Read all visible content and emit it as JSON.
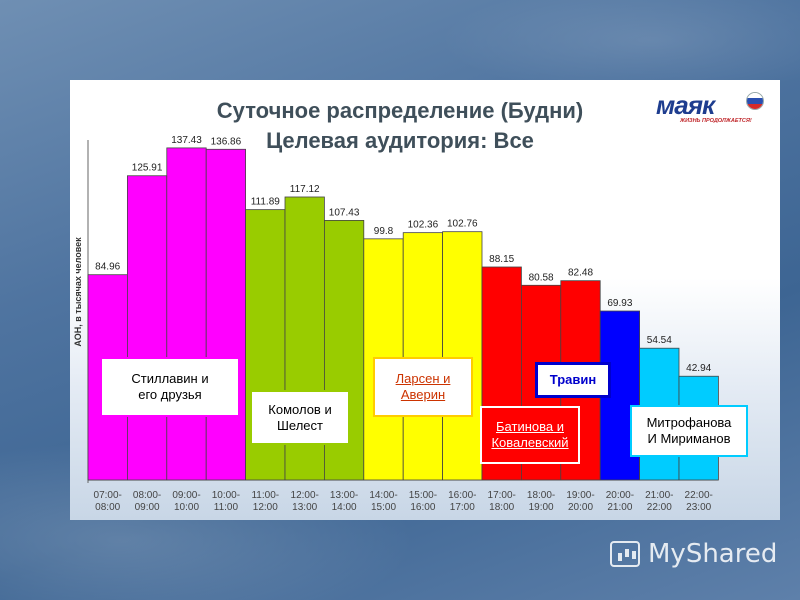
{
  "title": "Суточное распределение (Будни)",
  "subtitle": "Целевая аудитория: Все",
  "logo": {
    "word": "маяк",
    "tagline": "ЖИЗНЬ ПРОДОЛЖАЕТСЯ!",
    "flag_colors": [
      "#ffffff",
      "#2a4fb0",
      "#d42a2a"
    ]
  },
  "watermark": "MyShared",
  "chart_data": {
    "type": "bar",
    "ylabel": "АОН, в тысячах человек",
    "categories": [
      "07:00-08:00",
      "08:00-09:00",
      "09:00-10:00",
      "10:00-11:00",
      "11:00-12:00",
      "12:00-13:00",
      "13:00-14:00",
      "14:00-15:00",
      "15:00-16:00",
      "16:00-17:00",
      "17:00-18:00",
      "18:00-19:00",
      "19:00-20:00",
      "20:00-21:00",
      "21:00-22:00",
      "22:00-23:00"
    ],
    "category_lines": [
      [
        "07:00-",
        "08:00"
      ],
      [
        "08:00-",
        "09:00"
      ],
      [
        "09:00-",
        "10:00"
      ],
      [
        "10:00-",
        "11:00"
      ],
      [
        "11:00-",
        "12:00"
      ],
      [
        "12:00-",
        "13:00"
      ],
      [
        "13:00-",
        "14:00"
      ],
      [
        "14:00-",
        "15:00"
      ],
      [
        "15:00-",
        "16:00"
      ],
      [
        "16:00-",
        "17:00"
      ],
      [
        "17:00-",
        "18:00"
      ],
      [
        "18:00-",
        "19:00"
      ],
      [
        "19:00-",
        "20:00"
      ],
      [
        "20:00-",
        "21:00"
      ],
      [
        "21:00-",
        "22:00"
      ],
      [
        "22:00-",
        "23:00"
      ]
    ],
    "values": [
      84.96,
      125.91,
      137.43,
      136.86,
      111.89,
      117.12,
      107.43,
      99.8,
      102.36,
      102.76,
      88.15,
      80.58,
      82.48,
      69.93,
      54.54,
      42.94
    ],
    "value_labels": [
      "84.96",
      "125.91",
      "137.43",
      "136.86",
      "111.89",
      "117.12",
      "107.43",
      "99.8",
      "102.36",
      "102.76",
      "88.15",
      "80.58",
      "82.48",
      "69.93",
      "54.54",
      "42.94"
    ],
    "bar_colors": [
      "#ff00ff",
      "#ff00ff",
      "#ff00ff",
      "#ff00ff",
      "#99cc00",
      "#99cc00",
      "#99cc00",
      "#ffff00",
      "#ffff00",
      "#ffff00",
      "#ff0000",
      "#ff0000",
      "#ff0000",
      "#0000ff",
      "#00ccff",
      "#00ccff"
    ],
    "ylim": [
      0,
      140
    ],
    "grid": false
  },
  "hosts": [
    {
      "name": "Стиллавин и\nего друзья",
      "color": "#ff00ff"
    },
    {
      "name": "Комолов и\nШелест",
      "color": "#99cc00"
    },
    {
      "name": "Ларсен и\nАверин",
      "color": "#ffcc00",
      "text_color": "#cc3300"
    },
    {
      "name": "Батинова и\nКовалевский",
      "color": "#ff0000",
      "text_color": "#ffffff",
      "bg": "#ff0000"
    },
    {
      "name": "Травин",
      "color": "#0000cc",
      "text_color": "#0000cc"
    },
    {
      "name": "Митрофанова\nИ Мириманов",
      "color": "#00ccff"
    }
  ]
}
